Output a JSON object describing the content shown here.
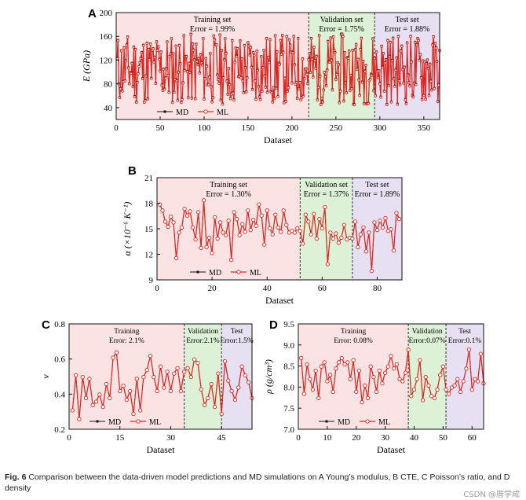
{
  "figure": {
    "caption_label": "Fig. 6",
    "caption_text": "Comparison between the data-driven model predictions and MD simulations on A Young’s modulus, B CTE, C Poisson’s ratio, and D density",
    "watermark": "CSDN @厝学成"
  },
  "colors": {
    "training": "#fbe3e3",
    "validation": "#dcf1d6",
    "test": "#e6e0f2",
    "md": "#111111",
    "ml": "#e0241e"
  },
  "chart_data": [
    {
      "id": "A",
      "type": "line",
      "panel_label": "A",
      "xlabel": "Dataset",
      "ylabel": "E (GPa)",
      "xlim": [
        0,
        368
      ],
      "ylim": [
        20,
        200
      ],
      "xticks": [
        0,
        50,
        100,
        150,
        200,
        250,
        300,
        350
      ],
      "yticks": [
        40,
        80,
        120,
        160,
        200
      ],
      "regions": [
        {
          "name": "Training set",
          "error": "Error = 1.99%",
          "from": 0,
          "to": 219
        },
        {
          "name": "Validation set",
          "error": "Error = 1.75%",
          "from": 219,
          "to": 294
        },
        {
          "name": "Test set",
          "error": "Error = 1.88%",
          "from": 294,
          "to": 368
        }
      ],
      "legend": [
        "MD",
        "ML"
      ],
      "n": 368,
      "ymin": 45,
      "ymax": 165,
      "seed": 11
    },
    {
      "id": "B",
      "type": "line",
      "panel_label": "B",
      "xlabel": "Dataset",
      "ylabel": "α (×10⁻⁶ K⁻¹)",
      "xlim": [
        0,
        89
      ],
      "ylim": [
        9,
        21
      ],
      "xticks": [
        0,
        20,
        40,
        60,
        80
      ],
      "yticks": [
        9,
        12,
        15,
        18,
        21
      ],
      "regions": [
        {
          "name": "Training set",
          "error": "Error = 1.30%",
          "from": 0,
          "to": 52
        },
        {
          "name": "Validation set",
          "error": "Error = 1.37%",
          "from": 52,
          "to": 71
        },
        {
          "name": "Test set",
          "error": "Error = 1.89%",
          "from": 71,
          "to": 89
        }
      ],
      "legend": [
        "MD",
        "ML"
      ],
      "points": [
        [
          1,
          17.9
        ],
        [
          2,
          17.2
        ],
        [
          3,
          15.9
        ],
        [
          4,
          15.3
        ],
        [
          5,
          16.5
        ],
        [
          6,
          15.8
        ],
        [
          7,
          11.6
        ],
        [
          8,
          14.6
        ],
        [
          9,
          15.2
        ],
        [
          10,
          17.4
        ],
        [
          11,
          16.6
        ],
        [
          12,
          17.1
        ],
        [
          13,
          15.2
        ],
        [
          14,
          13.8
        ],
        [
          15,
          17.0
        ],
        [
          16,
          12.8
        ],
        [
          17,
          18.4
        ],
        [
          18,
          12.9
        ],
        [
          19,
          14.0
        ],
        [
          20,
          12.2
        ],
        [
          21,
          16.4
        ],
        [
          22,
          13.9
        ],
        [
          23,
          15.8
        ],
        [
          24,
          14.6
        ],
        [
          25,
          14.3
        ],
        [
          26,
          16.0
        ],
        [
          27,
          11.4
        ],
        [
          28,
          17.0
        ],
        [
          29,
          16.2
        ],
        [
          30,
          14.3
        ],
        [
          31,
          15.6
        ],
        [
          32,
          14.7
        ],
        [
          33,
          17.2
        ],
        [
          34,
          14.9
        ],
        [
          35,
          16.1
        ],
        [
          36,
          15.4
        ],
        [
          37,
          17.9
        ],
        [
          38,
          16.6
        ],
        [
          39,
          13.2
        ],
        [
          40,
          17.2
        ],
        [
          41,
          15.1
        ],
        [
          42,
          14.4
        ],
        [
          43,
          16.7
        ],
        [
          44,
          15.2
        ],
        [
          45,
          14.7
        ],
        [
          46,
          17.2
        ],
        [
          47,
          15.5
        ],
        [
          48,
          14.6
        ],
        [
          49,
          14.8
        ],
        [
          50,
          14.6
        ],
        [
          51,
          15.1
        ],
        [
          52,
          14.8
        ],
        [
          53,
          13.3
        ],
        [
          54,
          16.7
        ],
        [
          55,
          15.9
        ],
        [
          56,
          14.4
        ],
        [
          57,
          16.8
        ],
        [
          58,
          13.9
        ],
        [
          59,
          16.2
        ],
        [
          60,
          15.1
        ],
        [
          61,
          17.6
        ],
        [
          62,
          10.9
        ],
        [
          63,
          14.6
        ],
        [
          64,
          13.9
        ],
        [
          65,
          14.5
        ],
        [
          66,
          13.4
        ],
        [
          67,
          14.0
        ],
        [
          68,
          15.5
        ],
        [
          69,
          13.8
        ],
        [
          70,
          14.0
        ],
        [
          71,
          13.9
        ],
        [
          72,
          15.9
        ],
        [
          73,
          12.9
        ],
        [
          74,
          14.4
        ],
        [
          75,
          15.2
        ],
        [
          76,
          12.4
        ],
        [
          77,
          14.6
        ],
        [
          78,
          10.1
        ],
        [
          79,
          15.8
        ],
        [
          80,
          14.9
        ],
        [
          81,
          16.0
        ],
        [
          82,
          15.2
        ],
        [
          83,
          16.3
        ],
        [
          84,
          14.8
        ],
        [
          85,
          15.0
        ],
        [
          86,
          12.5
        ],
        [
          87,
          16.9
        ],
        [
          88,
          16.2
        ]
      ]
    },
    {
      "id": "C",
      "type": "line",
      "panel_label": "C",
      "xlabel": "Dataset",
      "ylabel": "ν",
      "xlim": [
        0,
        54
      ],
      "ylim": [
        0.2,
        0.8
      ],
      "xticks": [
        0,
        15,
        30,
        45
      ],
      "yticks": [
        0.2,
        0.4,
        0.6,
        0.8
      ],
      "regions": [
        {
          "name": "Training",
          "error": "Error: 2.1%",
          "from": 0,
          "to": 34
        },
        {
          "name": "Validation",
          "error": "Error:2.1%",
          "from": 34,
          "to": 45
        },
        {
          "name": "Test",
          "error": "Error:1.5%",
          "from": 45,
          "to": 54
        }
      ],
      "legend": [
        "MD",
        "ML"
      ],
      "points": [
        [
          1,
          0.31
        ],
        [
          2,
          0.51
        ],
        [
          3,
          0.26
        ],
        [
          4,
          0.5
        ],
        [
          5,
          0.38
        ],
        [
          6,
          0.49
        ],
        [
          7,
          0.34
        ],
        [
          8,
          0.36
        ],
        [
          9,
          0.4
        ],
        [
          10,
          0.33
        ],
        [
          11,
          0.46
        ],
        [
          12,
          0.38
        ],
        [
          13,
          0.61
        ],
        [
          14,
          0.64
        ],
        [
          15,
          0.42
        ],
        [
          16,
          0.45
        ],
        [
          17,
          0.37
        ],
        [
          18,
          0.42
        ],
        [
          19,
          0.29
        ],
        [
          20,
          0.49
        ],
        [
          21,
          0.31
        ],
        [
          22,
          0.5
        ],
        [
          23,
          0.54
        ],
        [
          24,
          0.62
        ],
        [
          25,
          0.5
        ],
        [
          26,
          0.42
        ],
        [
          27,
          0.56
        ],
        [
          28,
          0.44
        ],
        [
          29,
          0.53
        ],
        [
          30,
          0.42
        ],
        [
          31,
          0.52
        ],
        [
          32,
          0.55
        ],
        [
          33,
          0.42
        ],
        [
          34,
          0.53
        ],
        [
          35,
          0.55
        ],
        [
          36,
          0.5
        ],
        [
          37,
          0.6
        ],
        [
          38,
          0.58
        ],
        [
          39,
          0.43
        ],
        [
          40,
          0.34
        ],
        [
          41,
          0.38
        ],
        [
          42,
          0.46
        ],
        [
          43,
          0.33
        ],
        [
          44,
          0.52
        ],
        [
          45,
          0.29
        ],
        [
          46,
          0.59
        ],
        [
          47,
          0.48
        ],
        [
          48,
          0.42
        ],
        [
          49,
          0.37
        ],
        [
          50,
          0.44
        ],
        [
          51,
          0.56
        ],
        [
          52,
          0.51
        ],
        [
          53,
          0.47
        ],
        [
          54,
          0.38
        ]
      ]
    },
    {
      "id": "D",
      "type": "line",
      "panel_label": "D",
      "xlabel": "Dataset",
      "ylabel": "ρ (g/cm³)",
      "xlim": [
        0,
        64
      ],
      "ylim": [
        7.0,
        9.5
      ],
      "xticks": [
        0,
        10,
        20,
        30,
        40,
        50,
        60
      ],
      "yticks": [
        7.0,
        7.5,
        8.0,
        8.5,
        9.0,
        9.5
      ],
      "regions": [
        {
          "name": "Training",
          "error": "Error: 0.08%",
          "from": 0,
          "to": 38
        },
        {
          "name": "Validation",
          "error": "Error:0.07%",
          "from": 38,
          "to": 51
        },
        {
          "name": "Test",
          "error": "Error:0.1%",
          "from": 51,
          "to": 64
        }
      ],
      "legend": [
        "MD",
        "ML"
      ],
      "points": [
        [
          1,
          8.7
        ],
        [
          2,
          7.85
        ],
        [
          3,
          8.55
        ],
        [
          4,
          8.2
        ],
        [
          5,
          7.95
        ],
        [
          6,
          8.4
        ],
        [
          7,
          7.75
        ],
        [
          8,
          8.5
        ],
        [
          9,
          8.6
        ],
        [
          10,
          8.15
        ],
        [
          11,
          8.3
        ],
        [
          12,
          7.9
        ],
        [
          13,
          8.45
        ],
        [
          14,
          8.6
        ],
        [
          15,
          8.7
        ],
        [
          16,
          8.55
        ],
        [
          17,
          8.6
        ],
        [
          18,
          8.2
        ],
        [
          19,
          8.65
        ],
        [
          20,
          7.9
        ],
        [
          21,
          8.4
        ],
        [
          22,
          7.65
        ],
        [
          23,
          8.05
        ],
        [
          24,
          7.75
        ],
        [
          25,
          8.5
        ],
        [
          26,
          8.25
        ],
        [
          27,
          7.9
        ],
        [
          28,
          8.4
        ],
        [
          29,
          8.1
        ],
        [
          30,
          8.35
        ],
        [
          31,
          8.5
        ],
        [
          32,
          8.75
        ],
        [
          33,
          8.45
        ],
        [
          34,
          8.55
        ],
        [
          35,
          8.2
        ],
        [
          36,
          8.15
        ],
        [
          37,
          8.35
        ],
        [
          38,
          8.9
        ],
        [
          39,
          7.8
        ],
        [
          40,
          7.95
        ],
        [
          41,
          8.2
        ],
        [
          42,
          8.65
        ],
        [
          43,
          7.7
        ],
        [
          44,
          8.25
        ],
        [
          45,
          8.05
        ],
        [
          46,
          7.8
        ],
        [
          47,
          7.75
        ],
        [
          48,
          7.95
        ],
        [
          49,
          8.3
        ],
        [
          50,
          8.5
        ],
        [
          51,
          7.95
        ],
        [
          52,
          7.85
        ],
        [
          53,
          8.0
        ],
        [
          54,
          8.05
        ],
        [
          55,
          8.2
        ],
        [
          56,
          7.9
        ],
        [
          57,
          8.15
        ],
        [
          58,
          8.45
        ],
        [
          59,
          8.9
        ],
        [
          60,
          7.95
        ],
        [
          61,
          8.2
        ],
        [
          62,
          8.15
        ],
        [
          63,
          8.8
        ],
        [
          64,
          8.1
        ]
      ]
    }
  ]
}
